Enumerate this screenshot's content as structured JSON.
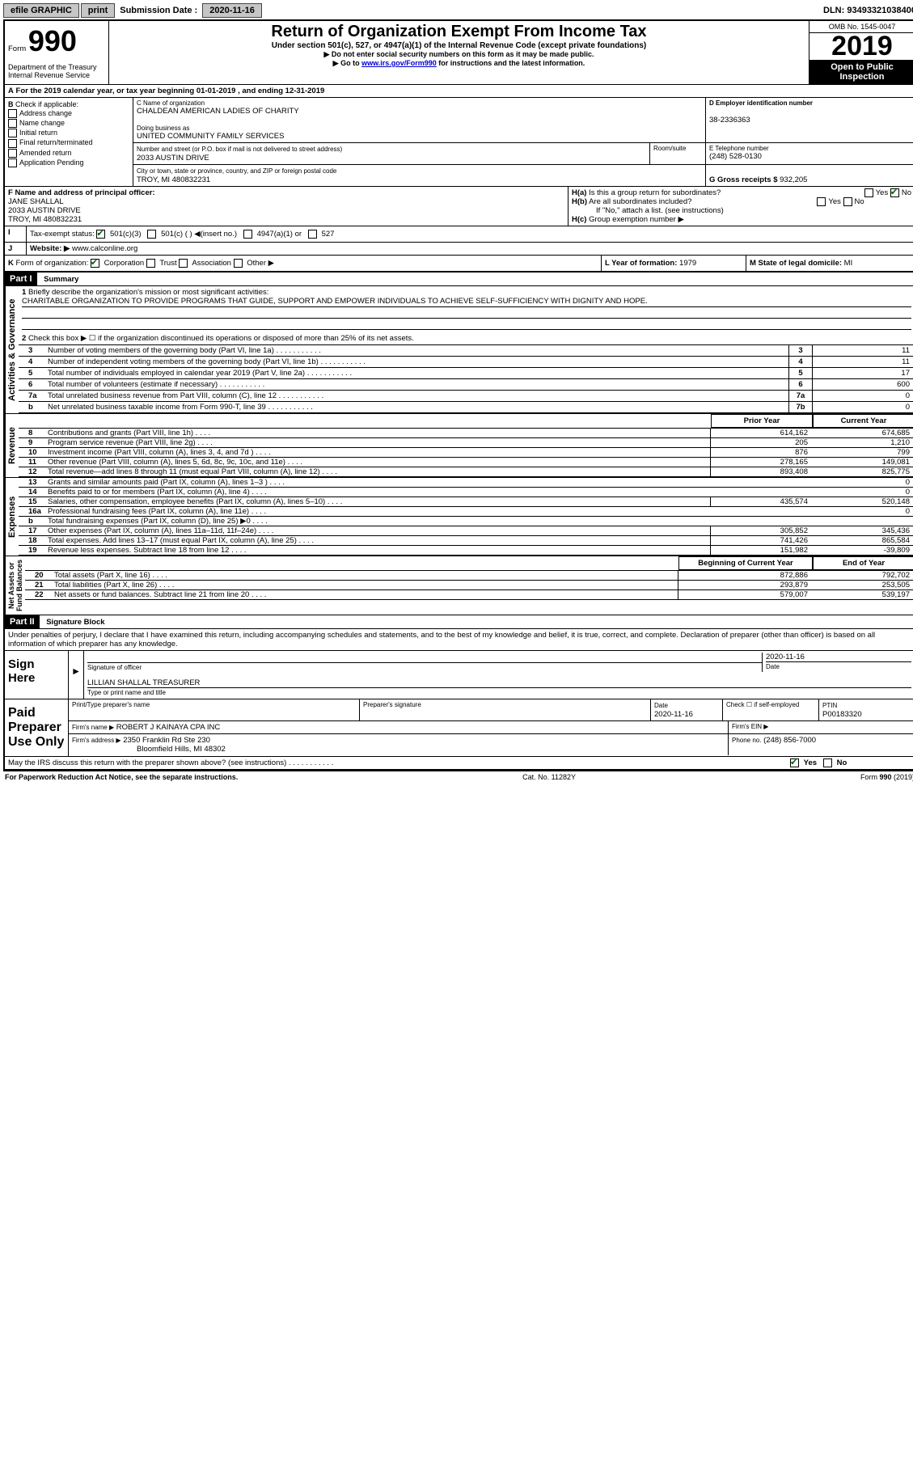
{
  "top_bar": {
    "efile": "efile GRAPHIC",
    "print": "print",
    "sub_label": "Submission Date :",
    "sub_date": "2020-11-16",
    "dln": "DLN: 93493321038400"
  },
  "header": {
    "form_label": "Form",
    "form_num": "990",
    "dept": "Department of the Treasury\nInternal Revenue Service",
    "title": "Return of Organization Exempt From Income Tax",
    "subtitle": "Under section 501(c), 527, or 4947(a)(1) of the Internal Revenue Code (except private foundations)",
    "line1": "Do not enter social security numbers on this form as it may be made public.",
    "line2_pre": "Go to ",
    "line2_link": "www.irs.gov/Form990",
    "line2_post": " for instructions and the latest information.",
    "omb": "OMB No. 1545-0047",
    "year": "2019",
    "open_public": "Open to Public",
    "inspection": "Inspection"
  },
  "line_a": "For the 2019 calendar year, or tax year beginning 01-01-2019    , and ending 12-31-2019",
  "section_b": {
    "label": "Check if applicable:",
    "opts": [
      "Address change",
      "Name change",
      "Initial return",
      "Final return/terminated",
      "Amended return",
      "Application Pending"
    ]
  },
  "section_c": {
    "name_label": "C Name of organization",
    "name": "CHALDEAN AMERICAN LADIES OF CHARITY",
    "dba_label": "Doing business as",
    "dba": "UNITED COMMUNITY FAMILY SERVICES",
    "addr_label": "Number and street (or P.O. box if mail is not delivered to street address)",
    "room_label": "Room/suite",
    "addr": "2033 AUSTIN DRIVE",
    "city_label": "City or town, state or province, country, and ZIP or foreign postal code",
    "city": "TROY, MI  480832231"
  },
  "section_d": {
    "label": "D Employer identification number",
    "ein": "38-2336363"
  },
  "section_e": {
    "label": "E Telephone number",
    "phone": "(248) 528-0130"
  },
  "section_g": {
    "label": "G Gross receipts $",
    "amount": "932,205"
  },
  "section_f": {
    "label": "F Name and address of principal officer:",
    "name": "JANE SHALLAL",
    "addr1": "2033 AUSTIN DRIVE",
    "addr2": "TROY, MI  480832231"
  },
  "section_h": {
    "a": "Is this a group return for subordinates?",
    "b": "Are all subordinates included?",
    "b_note": "If \"No,\" attach a list. (see instructions)",
    "c": "Group exemption number ▶",
    "yes": "Yes",
    "no": "No"
  },
  "section_i": {
    "label": "Tax-exempt status:",
    "opts": [
      "501(c)(3)",
      "501(c) (   ) ◀(insert no.)",
      "4947(a)(1) or",
      "527"
    ]
  },
  "section_j": {
    "label": "Website: ▶",
    "val": "www.calconline.org"
  },
  "section_k": {
    "label": "Form of organization:",
    "opts": [
      "Corporation",
      "Trust",
      "Association",
      "Other ▶"
    ]
  },
  "section_l": {
    "label": "L Year of formation:",
    "val": "1979"
  },
  "section_m": {
    "label": "M State of legal domicile:",
    "val": "MI"
  },
  "part1": {
    "header": "Part I",
    "title": "Summary",
    "mission_label": "Briefly describe the organization's mission or most significant activities:",
    "mission": "CHARITABLE ORGANIZATION TO PROVIDE PROGRAMS THAT GUIDE, SUPPORT AND EMPOWER INDIVIDUALS TO ACHIEVE SELF-SUFFICIENCY WITH DIGNITY AND HOPE.",
    "line2": "Check this box ▶ ☐  if the organization discontinued its operations or disposed of more than 25% of its net assets.",
    "lines": [
      {
        "n": "3",
        "t": "Number of voting members of the governing body (Part VI, line 1a)",
        "b": "3",
        "v": "11"
      },
      {
        "n": "4",
        "t": "Number of independent voting members of the governing body (Part VI, line 1b)",
        "b": "4",
        "v": "11"
      },
      {
        "n": "5",
        "t": "Total number of individuals employed in calendar year 2019 (Part V, line 2a)",
        "b": "5",
        "v": "17"
      },
      {
        "n": "6",
        "t": "Total number of volunteers (estimate if necessary)",
        "b": "6",
        "v": "600"
      },
      {
        "n": "7a",
        "t": "Total unrelated business revenue from Part VIII, column (C), line 12",
        "b": "7a",
        "v": "0"
      },
      {
        "n": "b",
        "t": "Net unrelated business taxable income from Form 990-T, line 39",
        "b": "7b",
        "v": "0"
      }
    ],
    "col_prior": "Prior Year",
    "col_current": "Current Year",
    "col_begin": "Beginning of Current Year",
    "col_end": "End of Year",
    "rev": [
      {
        "n": "8",
        "t": "Contributions and grants (Part VIII, line 1h)",
        "p": "614,162",
        "c": "674,685"
      },
      {
        "n": "9",
        "t": "Program service revenue (Part VIII, line 2g)",
        "p": "205",
        "c": "1,210"
      },
      {
        "n": "10",
        "t": "Investment income (Part VIII, column (A), lines 3, 4, and 7d )",
        "p": "876",
        "c": "799"
      },
      {
        "n": "11",
        "t": "Other revenue (Part VIII, column (A), lines 5, 6d, 8c, 9c, 10c, and 11e)",
        "p": "278,165",
        "c": "149,081"
      },
      {
        "n": "12",
        "t": "Total revenue—add lines 8 through 11 (must equal Part VIII, column (A), line 12)",
        "p": "893,408",
        "c": "825,775"
      }
    ],
    "exp": [
      {
        "n": "13",
        "t": "Grants and similar amounts paid (Part IX, column (A), lines 1–3 )",
        "p": "",
        "c": "0"
      },
      {
        "n": "14",
        "t": "Benefits paid to or for members (Part IX, column (A), line 4)",
        "p": "",
        "c": "0"
      },
      {
        "n": "15",
        "t": "Salaries, other compensation, employee benefits (Part IX, column (A), lines 5–10)",
        "p": "435,574",
        "c": "520,148"
      },
      {
        "n": "16a",
        "t": "Professional fundraising fees (Part IX, column (A), line 11e)",
        "p": "",
        "c": "0"
      },
      {
        "n": "b",
        "t": "Total fundraising expenses (Part IX, column (D), line 25) ▶0",
        "p": "GRAY",
        "c": "GRAY"
      },
      {
        "n": "17",
        "t": "Other expenses (Part IX, column (A), lines 11a–11d, 11f–24e)",
        "p": "305,852",
        "c": "345,436"
      },
      {
        "n": "18",
        "t": "Total expenses. Add lines 13–17 (must equal Part IX, column (A), line 25)",
        "p": "741,426",
        "c": "865,584"
      },
      {
        "n": "19",
        "t": "Revenue less expenses. Subtract line 18 from line 12",
        "p": "151,982",
        "c": "-39,809"
      }
    ],
    "net": [
      {
        "n": "20",
        "t": "Total assets (Part X, line 16)",
        "p": "872,886",
        "c": "792,702"
      },
      {
        "n": "21",
        "t": "Total liabilities (Part X, line 26)",
        "p": "293,879",
        "c": "253,505"
      },
      {
        "n": "22",
        "t": "Net assets or fund balances. Subtract line 21 from line 20",
        "p": "579,007",
        "c": "539,197"
      }
    ]
  },
  "vert_labels": {
    "gov": "Activities & Governance",
    "rev": "Revenue",
    "exp": "Expenses",
    "net": "Net Assets or\nFund Balances"
  },
  "part2": {
    "header": "Part II",
    "title": "Signature Block",
    "penalties": "Under penalties of perjury, I declare that I have examined this return, including accompanying schedules and statements, and to the best of my knowledge and belief, it is true, correct, and complete. Declaration of preparer (other than officer) is based on all information of which preparer has any knowledge.",
    "sign_here": "Sign Here",
    "sig_officer": "Signature of officer",
    "date_label": "Date",
    "date_val": "2020-11-16",
    "officer_name": "LILLIAN SHALLAL  TREASURER",
    "type_name": "Type or print name and title",
    "paid": "Paid Preparer Use Only",
    "print_name": "Print/Type preparer's name",
    "prep_sig": "Preparer's signature",
    "prep_date": "2020-11-16",
    "check_self": "Check ☐ if self-employed",
    "ptin_label": "PTIN",
    "ptin": "P00183320",
    "firm_name_label": "Firm's name    ▶",
    "firm_name": "ROBERT J KAINAYA CPA INC",
    "firm_ein": "Firm's EIN ▶",
    "firm_addr_label": "Firm's address ▶",
    "firm_addr1": "2350 Franklin Rd Ste 230",
    "firm_addr2": "Bloomfield Hills, MI  48302",
    "firm_phone_label": "Phone no.",
    "firm_phone": "(248) 856-7000",
    "may_discuss": "May the IRS discuss this return with the preparer shown above? (see instructions)"
  },
  "footer": {
    "left": "For Paperwork Reduction Act Notice, see the separate instructions.",
    "mid": "Cat. No. 11282Y",
    "right": "Form 990 (2019)"
  }
}
